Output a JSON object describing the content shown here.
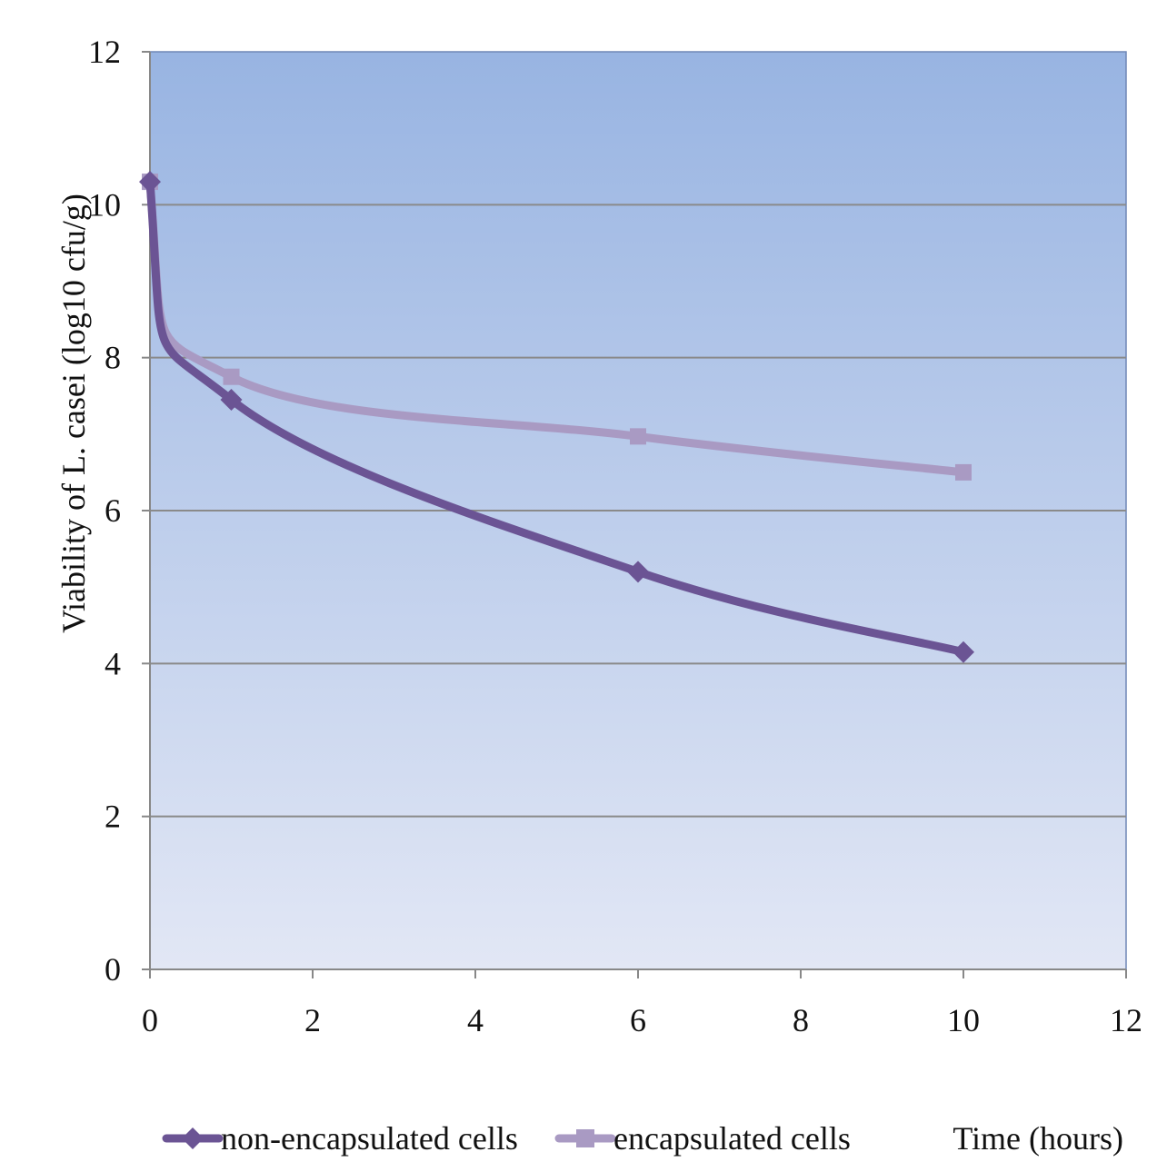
{
  "chart_data": {
    "type": "line",
    "title": "",
    "xlabel": "Time (hours)",
    "ylabel": "Viability of L. casei (log10 cfu/g)",
    "xlim": [
      0,
      12
    ],
    "ylim": [
      0,
      12
    ],
    "x_ticks": [
      0,
      2,
      4,
      6,
      8,
      10,
      12
    ],
    "y_ticks": [
      0,
      2,
      4,
      6,
      8,
      10,
      12
    ],
    "grid": "horizontal",
    "legend_position": "bottom",
    "background": {
      "top": "#98b4e2",
      "bottom": "#e2e7f5"
    },
    "series": [
      {
        "name": "non-encapsulated cells",
        "marker": "diamond",
        "color": "#6b5494",
        "x": [
          0,
          1,
          6,
          10
        ],
        "y": [
          10.3,
          7.45,
          5.2,
          4.15
        ]
      },
      {
        "name": "encapsulated cells",
        "marker": "square",
        "color": "#a99ac3",
        "x": [
          0,
          1,
          6,
          10
        ],
        "y": [
          10.3,
          7.75,
          6.97,
          6.5
        ]
      }
    ]
  }
}
